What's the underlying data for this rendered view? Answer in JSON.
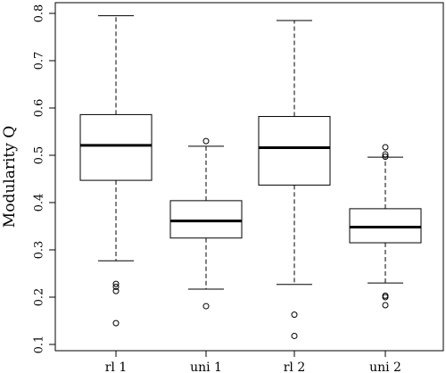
{
  "chart_data": {
    "type": "boxplot",
    "title": "",
    "xlabel": "",
    "ylabel": "Modularity Q",
    "ylim": [
      0.1,
      0.8
    ],
    "yticks": [
      0.1,
      0.2,
      0.3,
      0.4,
      0.5,
      0.6,
      0.7,
      0.8
    ],
    "ytick_labels": [
      "0.1",
      "0.2",
      "0.3",
      "0.4",
      "0.5",
      "0.6",
      "0.7",
      "0.8"
    ],
    "categories": [
      "rl 1",
      "uni 1",
      "rl 2",
      "uni 2"
    ],
    "boxes": [
      {
        "name": "rl 1",
        "whisker_low": 0.277,
        "q1": 0.447,
        "median": 0.521,
        "q3": 0.586,
        "whisker_high": 0.795,
        "outliers": [
          0.228,
          0.222,
          0.213,
          0.145
        ]
      },
      {
        "name": "uni 1",
        "whisker_low": 0.217,
        "q1": 0.325,
        "median": 0.361,
        "q3": 0.404,
        "whisker_high": 0.519,
        "outliers": [
          0.53,
          0.181
        ]
      },
      {
        "name": "rl 2",
        "whisker_low": 0.227,
        "q1": 0.437,
        "median": 0.516,
        "q3": 0.582,
        "whisker_high": 0.785,
        "outliers": [
          0.163,
          0.118
        ]
      },
      {
        "name": "uni 2",
        "whisker_low": 0.23,
        "q1": 0.315,
        "median": 0.348,
        "q3": 0.387,
        "whisker_high": 0.496,
        "outliers": [
          0.517,
          0.502,
          0.497,
          0.203,
          0.2,
          0.183
        ]
      }
    ],
    "grid": false,
    "legend": "none"
  }
}
